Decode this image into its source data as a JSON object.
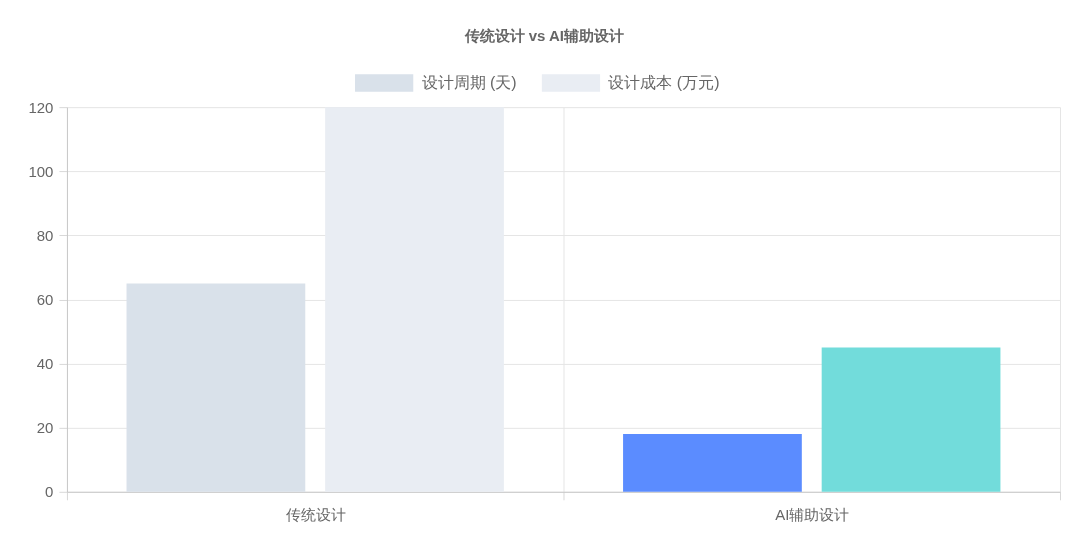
{
  "chart_data": {
    "type": "bar",
    "title": "传统设计 vs AI辅助设计",
    "categories": [
      "传统设计",
      "AI辅助设计"
    ],
    "series": [
      {
        "name": "设计周期 (天)",
        "color": "#d9e1ea",
        "colors": [
          "#d9e1ea",
          "#5b8cff"
        ],
        "values": [
          65,
          18
        ]
      },
      {
        "name": "设计成本 (万元)",
        "color": "#e9edf3",
        "colors": [
          "#e9edf3",
          "#72dcdb"
        ],
        "values": [
          120,
          45
        ]
      }
    ],
    "ylim": [
      0,
      120
    ],
    "yticks": [
      0,
      20,
      40,
      60,
      80,
      100,
      120
    ],
    "grid": true,
    "legend": "top"
  }
}
